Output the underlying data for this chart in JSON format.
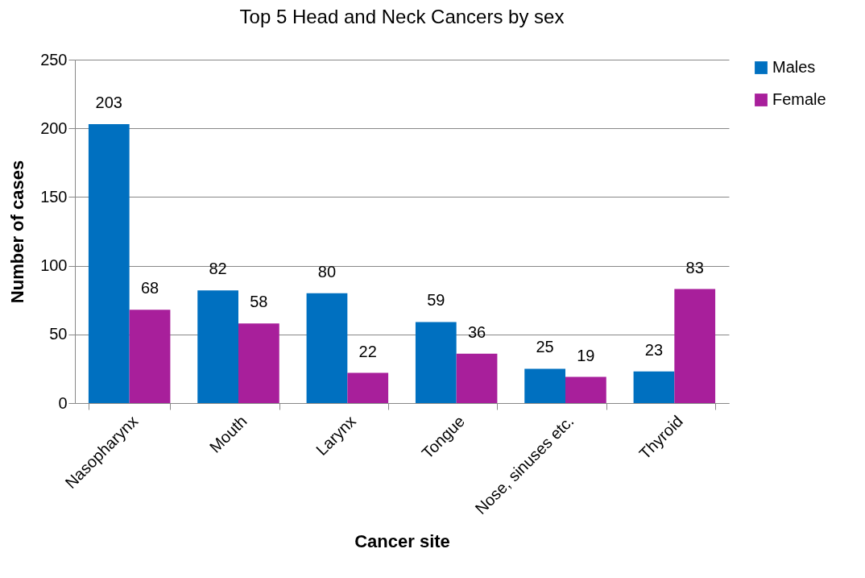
{
  "chart_data": {
    "type": "bar",
    "title": "Top 5 Head and Neck Cancers by sex",
    "xlabel": "Cancer site",
    "ylabel": "Number of cases",
    "categories": [
      "Nasopharynx",
      "Mouth",
      "Larynx",
      "Tongue",
      "Nose, sinuses etc.",
      "Thyroid"
    ],
    "series": [
      {
        "name": "Males",
        "color": "#0070c0",
        "values": [
          203,
          82,
          80,
          59,
          25,
          23
        ]
      },
      {
        "name": "Female",
        "color": "#a81f9b",
        "values": [
          68,
          58,
          22,
          36,
          19,
          83
        ]
      }
    ],
    "ylim": [
      0,
      250
    ],
    "yticks": [
      0,
      50,
      100,
      150,
      200,
      250
    ],
    "grid": "y",
    "legend": "right",
    "data_labels": true
  }
}
